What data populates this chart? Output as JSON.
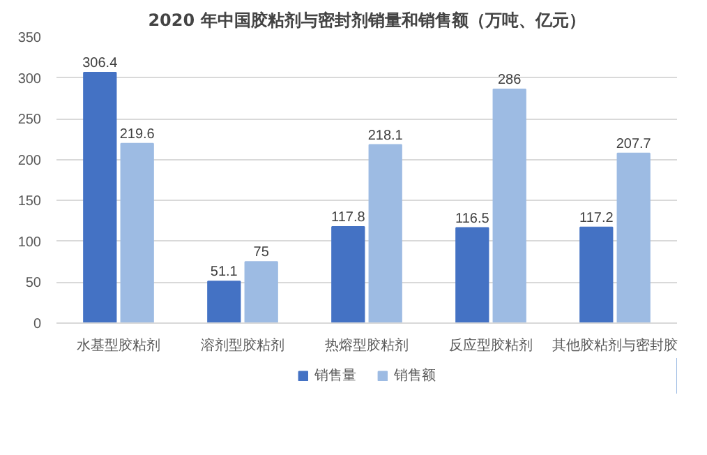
{
  "chart_data": {
    "type": "bar",
    "title": "2020 年中国胶粘剂与密封剂销量和销售额（万吨、亿元）",
    "categories": [
      "水基型胶粘剂",
      "溶剂型胶粘剂",
      "热熔型胶粘剂",
      "反应型胶粘剂",
      "其他胶粘剂与密封胶"
    ],
    "series": [
      {
        "name": "销售量",
        "color": "#4472c4",
        "values": [
          306.4,
          51.1,
          117.8,
          116.5,
          117.2
        ]
      },
      {
        "name": "销售额",
        "color": "#9dbbe3",
        "values": [
          219.6,
          75,
          218.1,
          286,
          207.7
        ]
      }
    ],
    "ylim": [
      0,
      350
    ],
    "yticks": [
      0,
      50,
      100,
      150,
      200,
      250,
      300,
      350
    ],
    "grid": "y",
    "legend": "bottom",
    "data_labels": true
  }
}
